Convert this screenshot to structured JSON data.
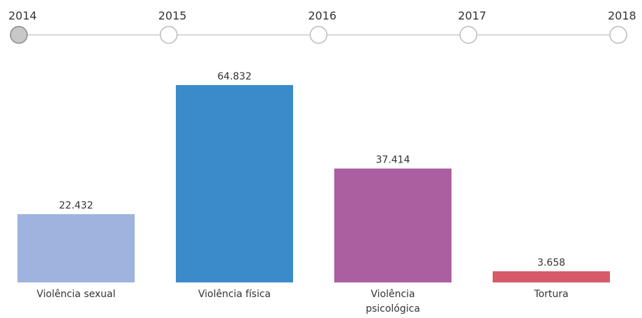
{
  "chart_data": {
    "type": "bar",
    "timeline": [
      "2014",
      "2015",
      "2016",
      "2017",
      "2018"
    ],
    "selected": "2014",
    "categories": [
      "Violência sexual",
      "Violência física",
      "Violência psicológica",
      "Tortura"
    ],
    "values": [
      22432,
      64832,
      37414,
      3658
    ],
    "value_labels": [
      "22.432",
      "64.832",
      "37.414",
      "3.658"
    ],
    "colors": [
      "#9fb3df",
      "#3b8bcb",
      "#ab5ea0",
      "#d55a6a"
    ]
  }
}
